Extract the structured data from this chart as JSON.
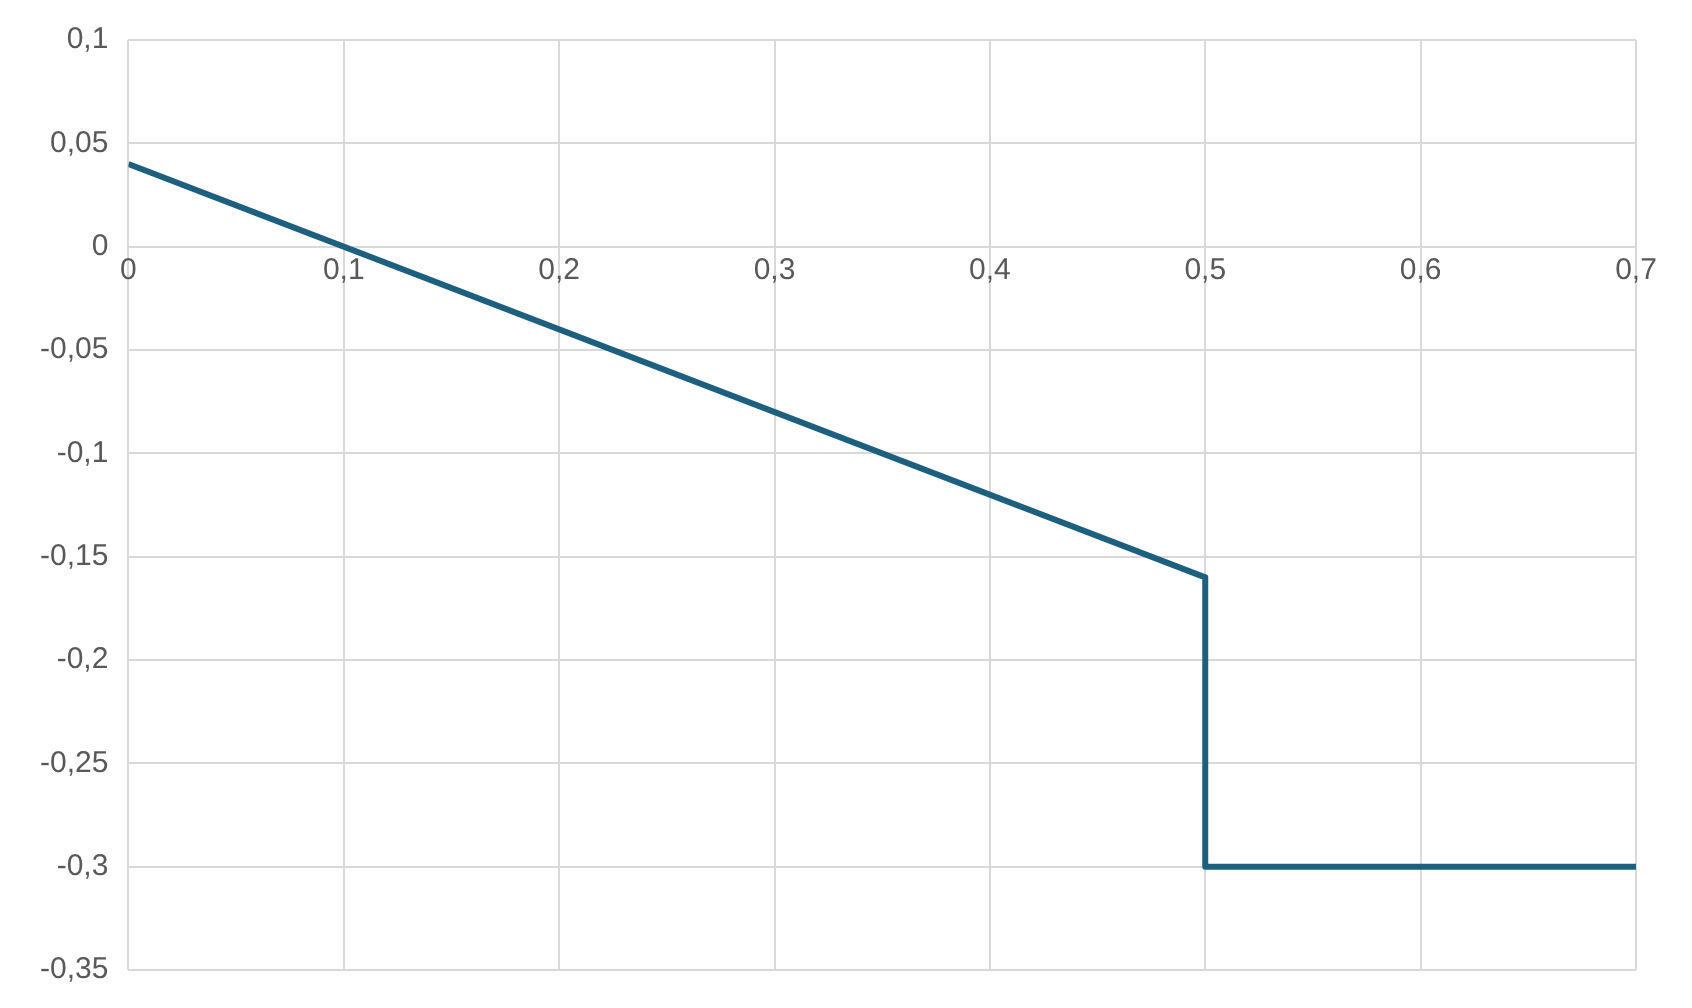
{
  "chart_data": {
    "type": "line",
    "x": [
      0,
      0.5,
      0.5,
      0.7
    ],
    "series": [
      {
        "color": "#1d5f7e",
        "values": [
          0.04,
          -0.16,
          -0.3,
          -0.3
        ]
      }
    ],
    "xlim": [
      0,
      0.7
    ],
    "xticks": [
      0,
      {
        "value": 0.1,
        "label": "0,1"
      },
      {
        "value": 0.2,
        "label": "0,2"
      },
      {
        "value": 0.3,
        "label": "0,3"
      },
      {
        "value": 0.4,
        "label": "0,4"
      },
      {
        "value": 0.5,
        "label": "0,5"
      },
      {
        "value": 0.6,
        "label": "0,6"
      },
      {
        "value": 0.7,
        "label": "0,7"
      }
    ],
    "ylim": [
      -0.35,
      0.1
    ],
    "yticks": [
      {
        "value": -0.35,
        "label": "-0,35"
      },
      {
        "value": -0.3,
        "label": "-0,3"
      },
      {
        "value": -0.25,
        "label": "-0,25"
      },
      {
        "value": -0.2,
        "label": "-0,2"
      },
      {
        "value": -0.15,
        "label": "-0,15"
      },
      {
        "value": -0.1,
        "label": "-0,1"
      },
      {
        "value": -0.05,
        "label": "-0,05"
      },
      0,
      {
        "value": 0.05,
        "label": "0,05"
      },
      {
        "value": 0.1,
        "label": "0,1"
      }
    ],
    "grid": true,
    "legend": false,
    "marker": "none",
    "line_style": "solid"
  }
}
